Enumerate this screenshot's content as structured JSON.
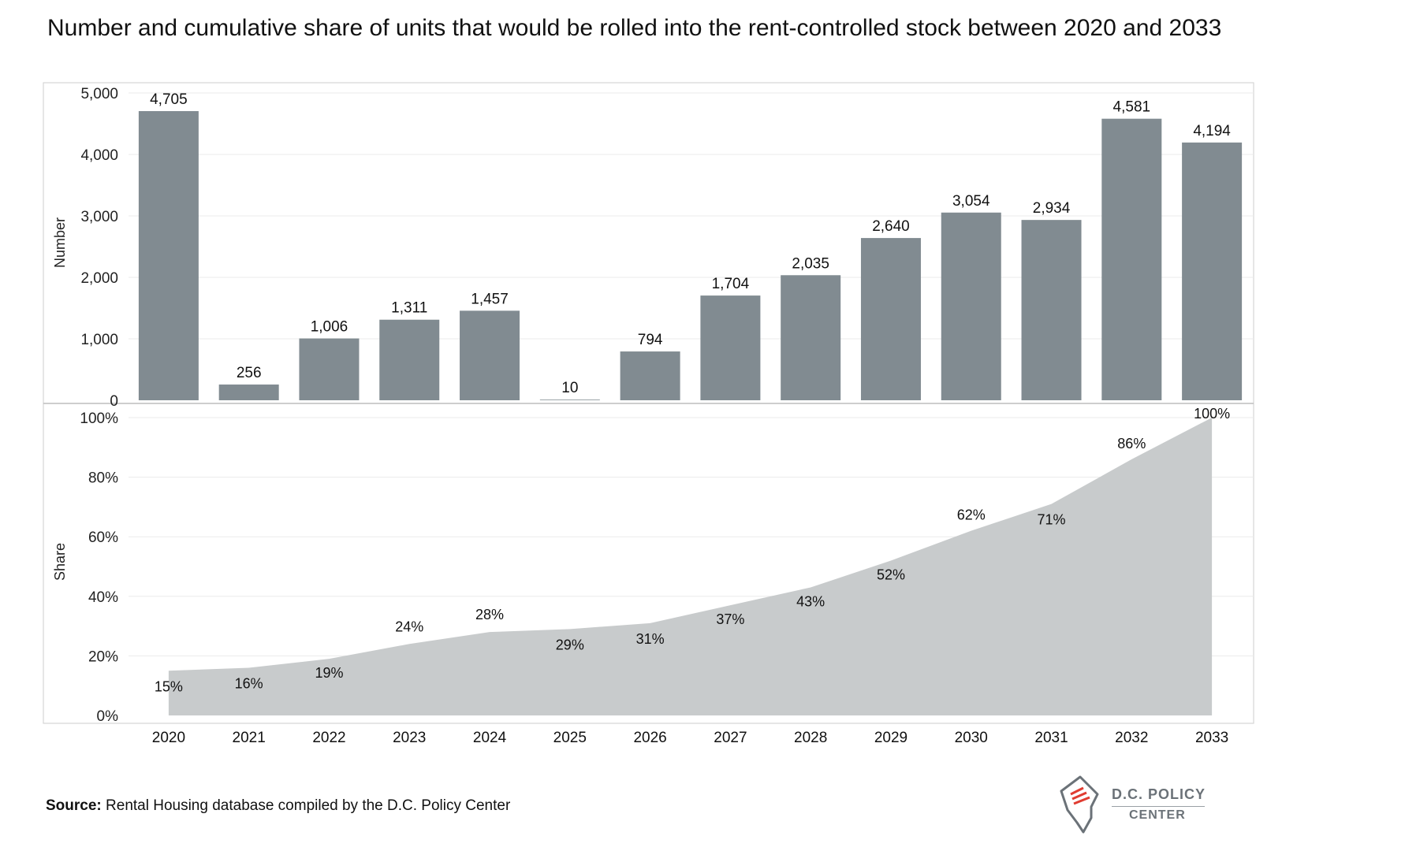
{
  "title": "Number and cumulative share of units that would be rolled into the rent-controlled stock between 2020 and 2033",
  "source": {
    "label": "Source:",
    "text": " Rental Housing database compiled by the D.C. Policy Center"
  },
  "logo": {
    "line1": "D.C. POLICY",
    "line2": "CENTER"
  },
  "colors": {
    "bar": "#818b91",
    "area": "#c8cbcc",
    "grid": "#ebebeb",
    "frame": "#d6d6d6"
  },
  "chart_data": [
    {
      "type": "bar",
      "ylabel": "Number",
      "ylim": [
        0,
        5200
      ],
      "yticks": [
        0,
        1000,
        2000,
        3000,
        4000,
        5000
      ],
      "ytick_labels": [
        "0",
        "1,000",
        "2,000",
        "3,000",
        "4,000",
        "5,000"
      ],
      "categories": [
        "2020",
        "2021",
        "2022",
        "2023",
        "2024",
        "2025",
        "2026",
        "2027",
        "2028",
        "2029",
        "2030",
        "2031",
        "2032",
        "2033"
      ],
      "values": [
        4705,
        256,
        1006,
        1311,
        1457,
        10,
        794,
        1704,
        2035,
        2640,
        3054,
        2934,
        4581,
        4194
      ],
      "labels": [
        "4,705",
        "256",
        "1,006",
        "1,311",
        "1,457",
        "10",
        "794",
        "1,704",
        "2,035",
        "2,640",
        "3,054",
        "2,934",
        "4,581",
        "4,194"
      ]
    },
    {
      "type": "area",
      "ylabel": "Share",
      "ylim": [
        0,
        100
      ],
      "yticks": [
        0,
        20,
        40,
        60,
        80,
        100
      ],
      "ytick_labels": [
        "0%",
        "20%",
        "40%",
        "60%",
        "80%",
        "100%"
      ],
      "categories": [
        "2020",
        "2021",
        "2022",
        "2023",
        "2024",
        "2025",
        "2026",
        "2027",
        "2028",
        "2029",
        "2030",
        "2031",
        "2032",
        "2033"
      ],
      "values": [
        15,
        16,
        19,
        24,
        28,
        29,
        31,
        37,
        43,
        52,
        62,
        71,
        86,
        100
      ],
      "labels": [
        "15%",
        "16%",
        "19%",
        "24%",
        "28%",
        "29%",
        "31%",
        "37%",
        "43%",
        "52%",
        "62%",
        "71%",
        "86%",
        "100%"
      ]
    }
  ]
}
